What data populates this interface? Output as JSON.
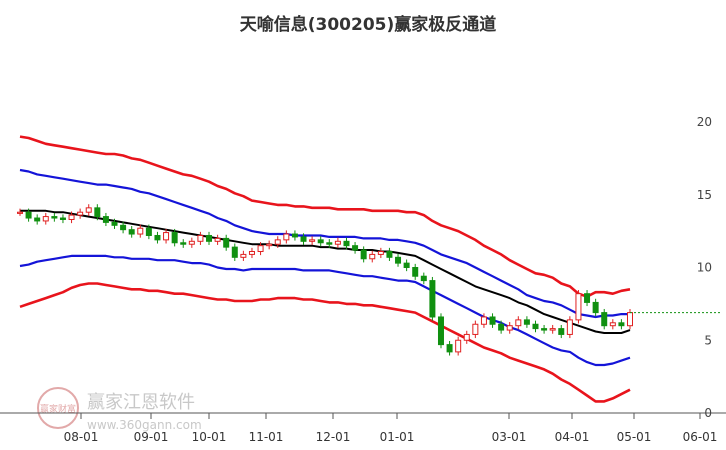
{
  "chart_data": {
    "type": "line",
    "title": "天喻信息(300205)赢家极反通道",
    "x_ticks": [
      "08-01",
      "09-01",
      "10-01",
      "11-01",
      "12-01",
      "01-01",
      "03-01",
      "04-01",
      "05-01",
      "06-01"
    ],
    "y_ticks": [
      0,
      5,
      10,
      15,
      20
    ],
    "ylim": [
      0,
      20
    ],
    "grid": false,
    "watermark": {
      "brand": "赢家江恩软件",
      "url": "www.360gann.com",
      "seal": "赢家财富"
    },
    "colors": {
      "outer_band": "#e8141c",
      "inner_band": "#1414d8",
      "mid_line": "#000000",
      "up_candle": "#e02020",
      "down_candle": "#109010",
      "last_price_line": "#109010"
    },
    "dates": [
      "07-21",
      "07-25",
      "07-29",
      "08-02",
      "08-06",
      "08-10",
      "08-14",
      "08-18",
      "08-22",
      "08-26",
      "08-30",
      "09-03",
      "09-07",
      "09-11",
      "09-15",
      "09-19",
      "09-23",
      "09-27",
      "10-01",
      "10-05",
      "10-09",
      "10-13",
      "10-17",
      "10-21",
      "10-25",
      "10-29",
      "11-02",
      "11-06",
      "11-10",
      "11-14",
      "11-18",
      "11-22",
      "11-26",
      "11-30",
      "12-04",
      "12-08",
      "12-12",
      "12-16",
      "12-20",
      "12-24",
      "12-28",
      "01-01",
      "01-05",
      "01-09",
      "01-13",
      "01-17",
      "01-21",
      "01-25",
      "01-29",
      "02-02",
      "02-06",
      "02-10",
      "02-14",
      "02-18",
      "02-22",
      "02-26",
      "03-02",
      "03-06",
      "03-10",
      "03-14",
      "03-18",
      "03-22",
      "03-26",
      "03-30",
      "04-03",
      "04-07",
      "04-11",
      "04-15",
      "04-19",
      "04-23",
      "04-27",
      "05-01"
    ],
    "series": [
      {
        "role": "outer_upper",
        "values": [
          19.0,
          18.9,
          18.7,
          18.5,
          18.4,
          18.3,
          18.2,
          18.1,
          18.0,
          17.9,
          17.8,
          17.8,
          17.7,
          17.5,
          17.4,
          17.2,
          17.0,
          16.8,
          16.6,
          16.4,
          16.3,
          16.1,
          15.9,
          15.6,
          15.4,
          15.1,
          14.9,
          14.6,
          14.5,
          14.4,
          14.3,
          14.3,
          14.2,
          14.2,
          14.1,
          14.1,
          14.1,
          14.0,
          14.0,
          14.0,
          14.0,
          13.9,
          13.9,
          13.9,
          13.9,
          13.8,
          13.8,
          13.6,
          13.2,
          12.9,
          12.7,
          12.5,
          12.2,
          11.9,
          11.5,
          11.2,
          10.9,
          10.5,
          10.2,
          9.9,
          9.6,
          9.5,
          9.3,
          8.9,
          8.7,
          8.2,
          8.0,
          8.3,
          8.3,
          8.2,
          8.4,
          8.5
        ]
      },
      {
        "role": "inner_upper",
        "values": [
          16.7,
          16.6,
          16.4,
          16.3,
          16.2,
          16.1,
          16.0,
          15.9,
          15.8,
          15.7,
          15.7,
          15.6,
          15.5,
          15.4,
          15.2,
          15.1,
          14.9,
          14.7,
          14.5,
          14.3,
          14.1,
          13.9,
          13.7,
          13.4,
          13.2,
          12.9,
          12.7,
          12.5,
          12.4,
          12.3,
          12.3,
          12.3,
          12.2,
          12.2,
          12.2,
          12.2,
          12.1,
          12.1,
          12.1,
          12.1,
          12.0,
          12.0,
          12.0,
          11.9,
          11.9,
          11.8,
          11.7,
          11.5,
          11.2,
          10.9,
          10.7,
          10.5,
          10.3,
          10.0,
          9.7,
          9.4,
          9.1,
          8.8,
          8.5,
          8.1,
          7.9,
          7.7,
          7.6,
          7.4,
          7.1,
          6.8,
          6.7,
          6.6,
          6.7,
          6.7,
          6.8,
          6.8
        ]
      },
      {
        "role": "middle",
        "values": [
          13.9,
          13.9,
          13.9,
          13.9,
          13.8,
          13.8,
          13.7,
          13.6,
          13.5,
          13.4,
          13.3,
          13.2,
          13.1,
          13.0,
          12.9,
          12.8,
          12.7,
          12.6,
          12.5,
          12.4,
          12.3,
          12.2,
          12.1,
          12.0,
          11.9,
          11.8,
          11.7,
          11.6,
          11.6,
          11.6,
          11.5,
          11.5,
          11.5,
          11.5,
          11.5,
          11.4,
          11.4,
          11.3,
          11.3,
          11.2,
          11.2,
          11.2,
          11.1,
          11.1,
          11.0,
          10.9,
          10.8,
          10.5,
          10.2,
          9.9,
          9.6,
          9.3,
          9.0,
          8.7,
          8.5,
          8.3,
          8.1,
          7.9,
          7.6,
          7.4,
          7.1,
          6.8,
          6.6,
          6.4,
          6.2,
          6.0,
          5.8,
          5.6,
          5.5,
          5.5,
          5.5,
          5.7
        ]
      },
      {
        "role": "inner_lower",
        "values": [
          10.1,
          10.2,
          10.4,
          10.5,
          10.6,
          10.7,
          10.8,
          10.8,
          10.8,
          10.8,
          10.8,
          10.7,
          10.7,
          10.6,
          10.6,
          10.6,
          10.5,
          10.5,
          10.5,
          10.4,
          10.3,
          10.3,
          10.2,
          10.0,
          9.9,
          9.9,
          9.8,
          9.9,
          9.9,
          9.9,
          9.9,
          9.9,
          9.9,
          9.8,
          9.8,
          9.8,
          9.8,
          9.7,
          9.6,
          9.5,
          9.4,
          9.4,
          9.3,
          9.2,
          9.1,
          9.1,
          9.0,
          8.7,
          8.4,
          8.1,
          7.8,
          7.5,
          7.2,
          6.9,
          6.6,
          6.4,
          6.2,
          5.9,
          5.7,
          5.4,
          5.1,
          4.8,
          4.5,
          4.3,
          4.2,
          3.8,
          3.5,
          3.3,
          3.3,
          3.4,
          3.6,
          3.8
        ]
      },
      {
        "role": "outer_lower",
        "values": [
          7.3,
          7.5,
          7.7,
          7.9,
          8.1,
          8.3,
          8.6,
          8.8,
          8.9,
          8.9,
          8.8,
          8.7,
          8.6,
          8.5,
          8.5,
          8.4,
          8.4,
          8.3,
          8.2,
          8.2,
          8.1,
          8.0,
          7.9,
          7.8,
          7.8,
          7.7,
          7.7,
          7.7,
          7.8,
          7.8,
          7.9,
          7.9,
          7.9,
          7.8,
          7.8,
          7.7,
          7.6,
          7.6,
          7.5,
          7.5,
          7.4,
          7.4,
          7.3,
          7.2,
          7.1,
          7.0,
          6.9,
          6.6,
          6.3,
          6.0,
          5.7,
          5.4,
          5.1,
          4.8,
          4.5,
          4.3,
          4.1,
          3.8,
          3.6,
          3.4,
          3.2,
          3.0,
          2.7,
          2.3,
          2.0,
          1.6,
          1.2,
          0.8,
          0.8,
          1.0,
          1.3,
          1.6
        ]
      },
      {
        "role": "close",
        "values": [
          13.8,
          13.4,
          13.2,
          13.5,
          13.4,
          13.3,
          13.6,
          13.8,
          14.1,
          13.5,
          13.1,
          12.9,
          12.6,
          12.3,
          12.7,
          12.2,
          11.9,
          12.4,
          11.7,
          11.6,
          11.8,
          12.2,
          11.8,
          12.0,
          11.4,
          10.7,
          10.9,
          11.1,
          11.5,
          11.6,
          11.9,
          12.3,
          12.1,
          11.8,
          11.9,
          11.7,
          11.6,
          11.8,
          11.5,
          11.2,
          10.6,
          10.9,
          11.1,
          10.7,
          10.3,
          10.0,
          9.4,
          9.1,
          6.6,
          4.7,
          4.2,
          5.0,
          5.4,
          6.1,
          6.6,
          6.1,
          5.7,
          6.0,
          6.4,
          6.1,
          5.8,
          5.7,
          5.8,
          5.4,
          6.4,
          8.2,
          7.6,
          6.9,
          6.0,
          6.2,
          6.0,
          6.9
        ]
      }
    ]
  }
}
